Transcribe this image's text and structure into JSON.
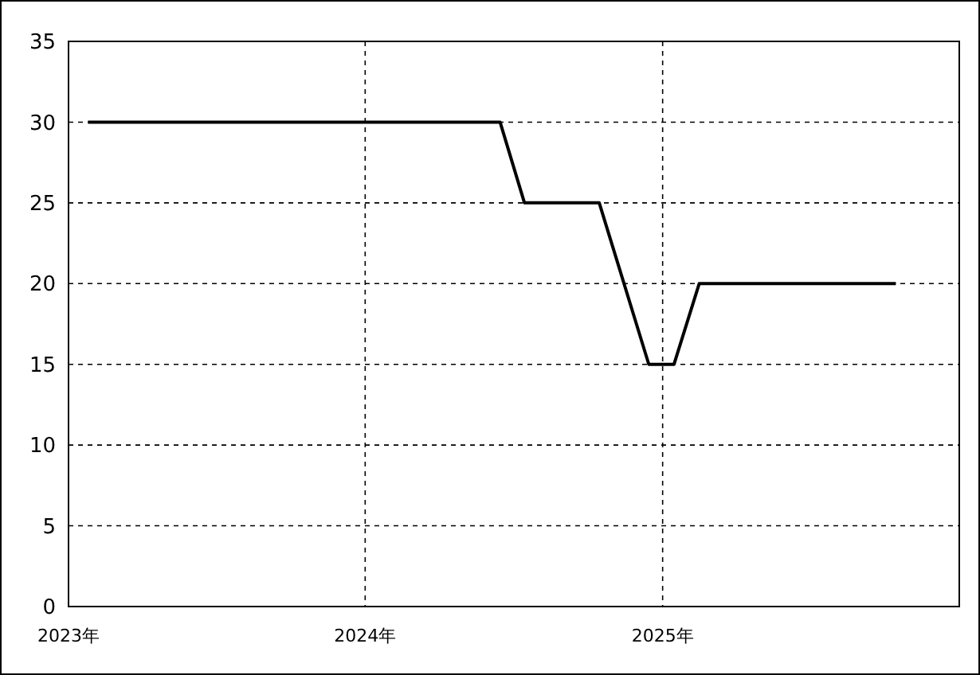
{
  "chart_data": {
    "type": "line",
    "x": [
      "2023-01-25",
      "2024-06-15",
      "2024-07-15",
      "2024-10-15",
      "2024-12-15",
      "2025-01-15",
      "2025-02-15",
      "2025-10-15"
    ],
    "series": [
      {
        "color": "#000000",
        "values": [
          30,
          30,
          25,
          25,
          15,
          15,
          20,
          20
        ]
      }
    ],
    "xlim": [
      "2023",
      "2026"
    ],
    "xticks": [
      {
        "value": "2023",
        "label": "2023年"
      },
      {
        "value": "2024",
        "label": "2024年"
      },
      {
        "value": "2025",
        "label": "2025年"
      }
    ],
    "ylim": [
      0,
      35
    ],
    "yticks": [
      0,
      5,
      10,
      15,
      20,
      25,
      30,
      35
    ],
    "grid": true,
    "line_style": "solid",
    "marker": "none"
  }
}
